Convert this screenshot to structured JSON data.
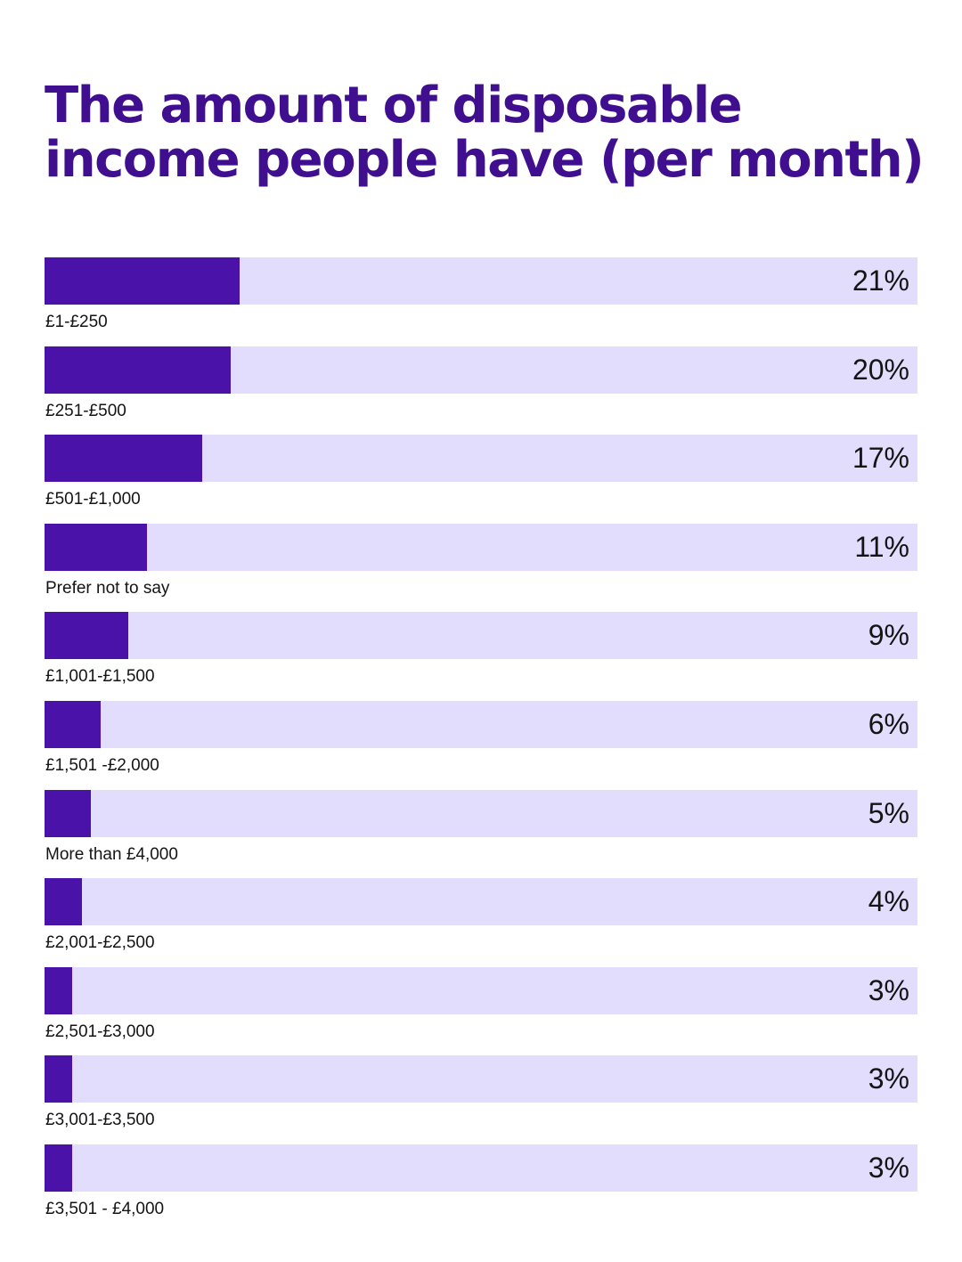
{
  "title": "The amount of disposable income people have (per month)",
  "colors": {
    "bar_fill": "#4a12a8",
    "bar_track": "#e2ddfd",
    "title": "#3f0f8f",
    "text": "#141414"
  },
  "chart_data": {
    "type": "bar",
    "orientation": "horizontal",
    "title": "The amount of disposable income people have (per month)",
    "categories": [
      "£1-£250",
      "£251-£500",
      "£501-£1,000",
      "Prefer not to say",
      "£1,001-£1,500",
      "£1,501 -£2,000",
      "More than £4,000",
      "£2,001-£2,500",
      "£2,501-£3,000",
      "£3,001-£3,500",
      "£3,501 - £4,000"
    ],
    "values": [
      21,
      20,
      17,
      11,
      9,
      6,
      5,
      4,
      3,
      3,
      3
    ],
    "value_labels": [
      "21%",
      "20%",
      "17%",
      "11%",
      "9%",
      "6%",
      "5%",
      "4%",
      "3%",
      "3%",
      "3%"
    ],
    "unit": "%",
    "xlim": [
      0,
      94
    ],
    "grid": false,
    "legend": "none"
  }
}
